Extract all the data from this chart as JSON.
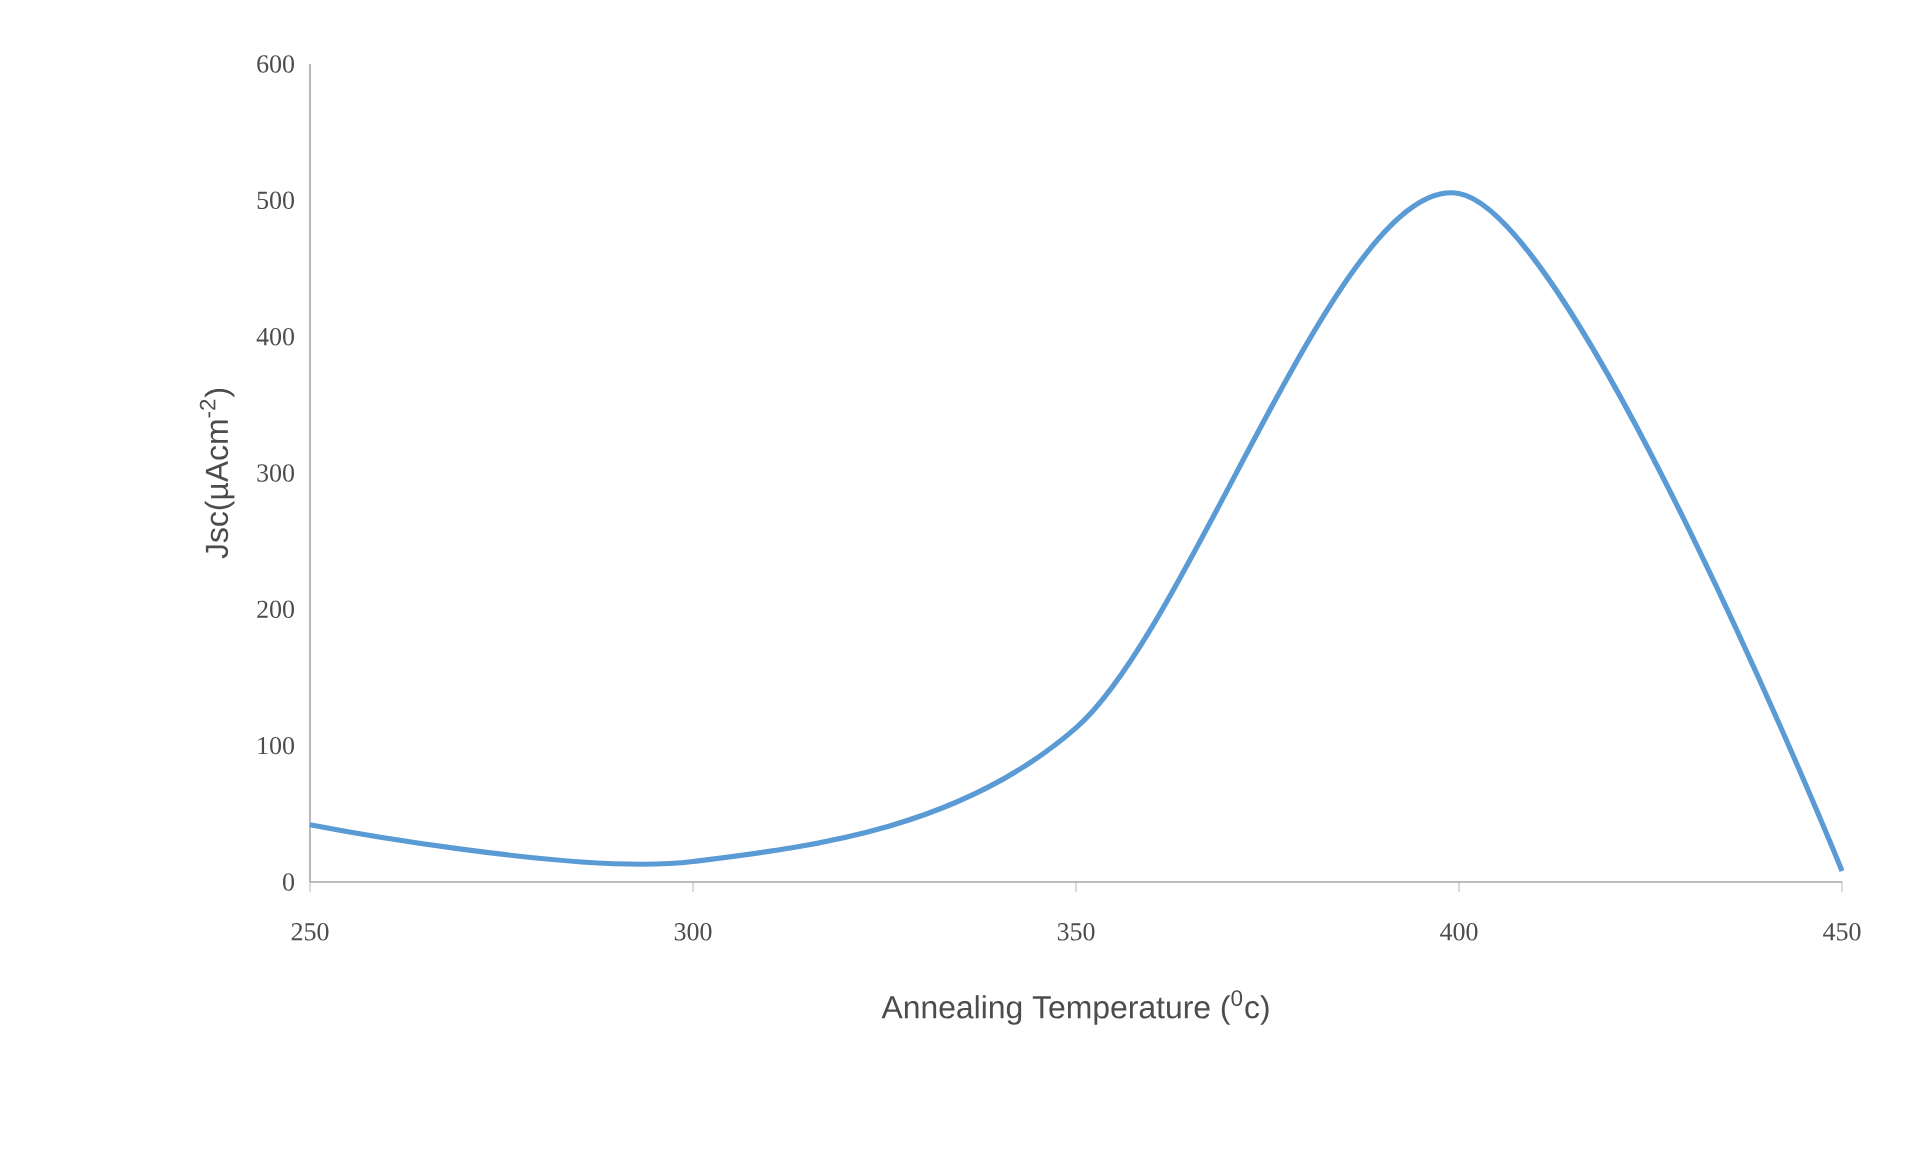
{
  "chart_data": {
    "type": "line",
    "xlabel": "Annealing Temperature ($^{0}$c)",
    "ylabel": "Jsc(µAcm$^{-2}$)",
    "x": [
      250,
      300,
      350,
      400,
      450
    ],
    "series": [
      {
        "color": "#5b9bd5",
        "values": [
          42,
          15,
          113,
          505,
          8
        ]
      }
    ],
    "xlim": [
      250,
      450
    ],
    "xticks": [
      250,
      300,
      350,
      400,
      450
    ],
    "ylim": [
      0,
      600
    ],
    "yticks": [
      0,
      100,
      200,
      300,
      400,
      500,
      600
    ],
    "grid": false,
    "legend": false,
    "marker": "none",
    "line_style": "solid"
  }
}
